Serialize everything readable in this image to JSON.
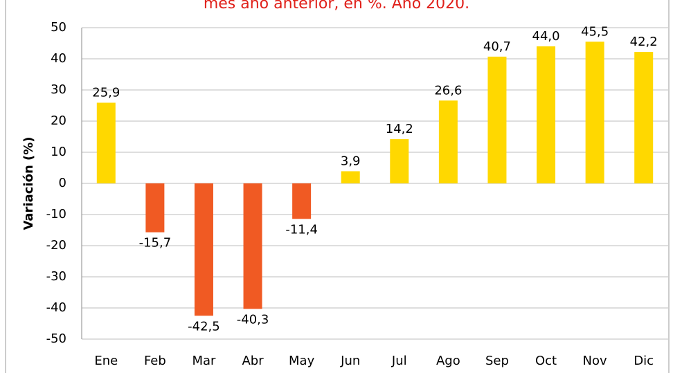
{
  "chart_data": {
    "type": "bar",
    "title": "mes año anterior, en %. Año 2020.",
    "y_label": "Variación (%)",
    "categories": [
      "Ene",
      "Feb",
      "Mar",
      "Abr",
      "May",
      "Jun",
      "Jul",
      "Ago",
      "Sep",
      "Oct",
      "Nov",
      "Dic"
    ],
    "values": [
      25.9,
      -15.7,
      -42.5,
      -40.3,
      -11.4,
      3.9,
      14.2,
      26.6,
      40.7,
      44.0,
      45.5,
      42.2
    ],
    "value_labels": [
      "25,9",
      "-15,7",
      "-42,5",
      "-40,3",
      "-11,4",
      "3,9",
      "14,2",
      "26,6",
      "40,7",
      "44,0",
      "45,5",
      "42,2"
    ],
    "color_positive": "#ffd800",
    "color_negative": "#f05a23",
    "ylim": [
      -50,
      50
    ],
    "yticks": [
      50,
      40,
      30,
      20,
      10,
      0,
      -10,
      -20,
      -30,
      -40,
      -50
    ],
    "grid": true
  }
}
